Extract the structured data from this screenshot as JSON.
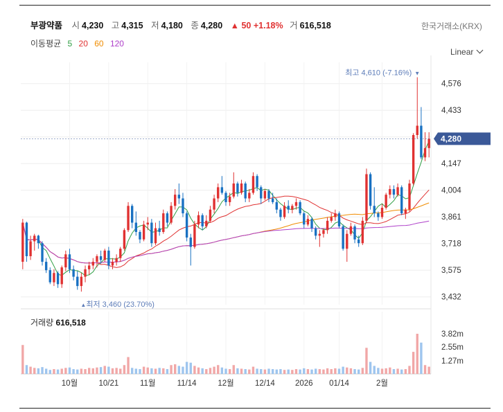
{
  "header": {
    "name": "부광약품",
    "open_label": "시",
    "open": "4,230",
    "high_label": "고",
    "high": "4,315",
    "low_label": "저",
    "low": "4,180",
    "close_label": "종",
    "close": "4,280",
    "change": "▲ 50 +1.18%",
    "volume_label": "거",
    "volume": "616,518"
  },
  "exchange": "한국거래소(KRX)",
  "scale_mode": "Linear",
  "moving_average": {
    "label": "이동평균",
    "periods": [
      {
        "period": "5",
        "color": "#2f9e44"
      },
      {
        "period": "20",
        "color": "#e03131"
      },
      {
        "period": "60",
        "color": "#f08c00"
      },
      {
        "period": "120",
        "color": "#ae3ec9"
      }
    ]
  },
  "colors": {
    "up": "#e03131",
    "down": "#1971c2",
    "price_tag": "#3b5998"
  },
  "chart_data": {
    "type": "candlestick",
    "y_ticks": [
      "4,576",
      "4,433",
      "4,290",
      "4,147",
      "4,004",
      "3,861",
      "3,718",
      "3,575",
      "3,432"
    ],
    "y_tick_values": [
      4576,
      4433,
      4290,
      4147,
      4004,
      3861,
      3718,
      3575,
      3432
    ],
    "ylim": [
      3390,
      4690
    ],
    "x_ticks": [
      "10월",
      "10/21",
      "11월",
      "11/14",
      "12월",
      "12/14",
      "2026",
      "01/14",
      "2월"
    ],
    "x_tick_index": [
      12,
      22,
      32,
      42,
      52,
      62,
      72,
      81,
      92
    ],
    "current_price_label": "4,280",
    "current_price": 4280,
    "high_annotation": {
      "text": "최고 4,610 (-7.16%)",
      "value": 4610,
      "index": 101
    },
    "low_annotation": {
      "text": "최저 3,460 (23.70%)",
      "value": 3460,
      "index": 15
    },
    "candles": [
      [
        3620,
        3850,
        3580,
        3830
      ],
      [
        3830,
        3835,
        3620,
        3650
      ],
      [
        3650,
        3760,
        3630,
        3730
      ],
      [
        3730,
        3770,
        3680,
        3760
      ],
      [
        3760,
        3765,
        3690,
        3720
      ],
      [
        3720,
        3730,
        3600,
        3620
      ],
      [
        3620,
        3640,
        3560,
        3575
      ],
      [
        3575,
        3590,
        3500,
        3510
      ],
      [
        3510,
        3580,
        3490,
        3560
      ],
      [
        3560,
        3570,
        3480,
        3500
      ],
      [
        3500,
        3600,
        3480,
        3590
      ],
      [
        3590,
        3680,
        3570,
        3660
      ],
      [
        3660,
        3690,
        3560,
        3580
      ],
      [
        3580,
        3600,
        3520,
        3540
      ],
      [
        3540,
        3570,
        3470,
        3490
      ],
      [
        3490,
        3560,
        3460,
        3540
      ],
      [
        3540,
        3600,
        3510,
        3580
      ],
      [
        3580,
        3620,
        3550,
        3600
      ],
      [
        3600,
        3640,
        3580,
        3620
      ],
      [
        3620,
        3660,
        3590,
        3650
      ],
      [
        3650,
        3680,
        3610,
        3630
      ],
      [
        3630,
        3690,
        3620,
        3680
      ],
      [
        3680,
        3700,
        3580,
        3600
      ],
      [
        3600,
        3640,
        3580,
        3620
      ],
      [
        3620,
        3660,
        3600,
        3640
      ],
      [
        3640,
        3700,
        3620,
        3690
      ],
      [
        3690,
        3800,
        3680,
        3790
      ],
      [
        3790,
        3940,
        3780,
        3920
      ],
      [
        3920,
        3930,
        3800,
        3830
      ],
      [
        3830,
        3890,
        3760,
        3780
      ],
      [
        3780,
        3790,
        3720,
        3740
      ],
      [
        3740,
        3840,
        3730,
        3820
      ],
      [
        3820,
        3860,
        3790,
        3830
      ],
      [
        3830,
        3850,
        3700,
        3720
      ],
      [
        3720,
        3830,
        3710,
        3800
      ],
      [
        3800,
        3840,
        3760,
        3780
      ],
      [
        3780,
        3900,
        3770,
        3880
      ],
      [
        3880,
        3890,
        3810,
        3830
      ],
      [
        3830,
        3940,
        3820,
        3920
      ],
      [
        3920,
        4010,
        3900,
        3980
      ],
      [
        3980,
        4040,
        3930,
        3960
      ],
      [
        3960,
        3990,
        3860,
        3880
      ],
      [
        3880,
        3890,
        3730,
        3750
      ],
      [
        3750,
        3770,
        3600,
        3700
      ],
      [
        3700,
        3840,
        3690,
        3820
      ],
      [
        3820,
        3890,
        3800,
        3870
      ],
      [
        3870,
        3880,
        3790,
        3810
      ],
      [
        3810,
        3870,
        3800,
        3840
      ],
      [
        3840,
        3920,
        3830,
        3900
      ],
      [
        3900,
        3980,
        3880,
        3960
      ],
      [
        3960,
        4040,
        3940,
        4020
      ],
      [
        4020,
        4080,
        3980,
        3990
      ],
      [
        3990,
        4000,
        3920,
        3940
      ],
      [
        3940,
        3990,
        3920,
        3970
      ],
      [
        3970,
        4100,
        3960,
        4040
      ],
      [
        4040,
        4050,
        3970,
        3990
      ],
      [
        3990,
        4060,
        3980,
        4040
      ],
      [
        4040,
        4050,
        3940,
        3960
      ],
      [
        3960,
        4010,
        3940,
        3990
      ],
      [
        3990,
        4100,
        3980,
        4080
      ],
      [
        4080,
        4090,
        4000,
        4020
      ],
      [
        4020,
        4030,
        3930,
        3960
      ],
      [
        3960,
        4010,
        3950,
        4000
      ],
      [
        4000,
        4010,
        3940,
        3960
      ],
      [
        3960,
        3990,
        3930,
        3940
      ],
      [
        3940,
        3960,
        3880,
        3900
      ],
      [
        3900,
        3910,
        3840,
        3860
      ],
      [
        3860,
        3940,
        3850,
        3920
      ],
      [
        3920,
        3950,
        3880,
        3900
      ],
      [
        3900,
        3930,
        3880,
        3920
      ],
      [
        3920,
        3960,
        3900,
        3940
      ],
      [
        3940,
        3950,
        3870,
        3880
      ],
      [
        3880,
        3890,
        3800,
        3820
      ],
      [
        3820,
        3870,
        3810,
        3850
      ],
      [
        3850,
        3860,
        3780,
        3800
      ],
      [
        3800,
        3810,
        3740,
        3760
      ],
      [
        3760,
        3790,
        3700,
        3770
      ],
      [
        3770,
        3800,
        3750,
        3790
      ],
      [
        3790,
        3860,
        3770,
        3840
      ],
      [
        3840,
        3880,
        3830,
        3860
      ],
      [
        3860,
        3900,
        3840,
        3880
      ],
      [
        3880,
        3890,
        3800,
        3810
      ],
      [
        3810,
        3820,
        3680,
        3690
      ],
      [
        3690,
        3790,
        3620,
        3770
      ],
      [
        3770,
        3830,
        3760,
        3810
      ],
      [
        3810,
        3820,
        3720,
        3740
      ],
      [
        3740,
        3760,
        3700,
        3720
      ],
      [
        3720,
        3860,
        3710,
        3840
      ],
      [
        3840,
        4120,
        3830,
        4090
      ],
      [
        4090,
        4100,
        3900,
        3920
      ],
      [
        3920,
        4020,
        3860,
        3880
      ],
      [
        3880,
        3890,
        3840,
        3860
      ],
      [
        3860,
        3930,
        3850,
        3910
      ],
      [
        3910,
        3990,
        3900,
        3980
      ],
      [
        3980,
        4030,
        3960,
        4010
      ],
      [
        4010,
        4030,
        3960,
        3980
      ],
      [
        3980,
        4040,
        3970,
        4020
      ],
      [
        4020,
        4030,
        3870,
        3880
      ],
      [
        3880,
        3910,
        3850,
        3900
      ],
      [
        3900,
        4060,
        3890,
        4040
      ],
      [
        4040,
        4310,
        4030,
        4300
      ],
      [
        4300,
        4610,
        4280,
        4350
      ],
      [
        4350,
        4450,
        4170,
        4180
      ],
      [
        4180,
        4315,
        4160,
        4230
      ],
      [
        4230,
        4315,
        4180,
        4280
      ]
    ],
    "volumes": [
      0.72,
      0.22,
      0.18,
      0.15,
      0.14,
      0.17,
      0.13,
      0.1,
      0.12,
      0.11,
      0.13,
      0.15,
      0.16,
      0.12,
      0.11,
      0.13,
      0.12,
      0.15,
      0.14,
      0.16,
      0.17,
      0.2,
      0.18,
      0.14,
      0.15,
      0.13,
      0.22,
      0.42,
      0.15,
      0.13,
      0.12,
      0.18,
      0.16,
      0.14,
      0.13,
      0.15,
      0.14,
      0.12,
      0.22,
      0.24,
      0.2,
      0.18,
      0.3,
      0.28,
      0.2,
      0.16,
      0.14,
      0.12,
      0.15,
      0.18,
      0.22,
      0.16,
      0.13,
      0.12,
      0.22,
      0.14,
      0.13,
      0.12,
      0.11,
      0.18,
      0.13,
      0.12,
      0.11,
      0.13,
      0.12,
      0.11,
      0.12,
      0.1,
      0.11,
      0.1,
      0.12,
      0.11,
      0.14,
      0.12,
      0.11,
      0.13,
      0.12,
      0.11,
      0.14,
      0.12,
      0.14,
      0.13,
      0.18,
      0.16,
      0.14,
      0.12,
      0.11,
      0.15,
      0.65,
      0.3,
      0.2,
      0.15,
      0.13,
      0.14,
      0.16,
      0.12,
      0.13,
      0.11,
      0.12,
      0.2,
      0.55,
      1.0,
      0.78,
      0.22,
      0.18
    ],
    "volume_ticks": [
      "3.82m",
      "2.55m",
      "1.27m"
    ],
    "volume_tick_values": [
      3820000,
      2550000,
      1270000
    ],
    "volume_title_label": "거래량",
    "volume_title_value": "616,518"
  }
}
